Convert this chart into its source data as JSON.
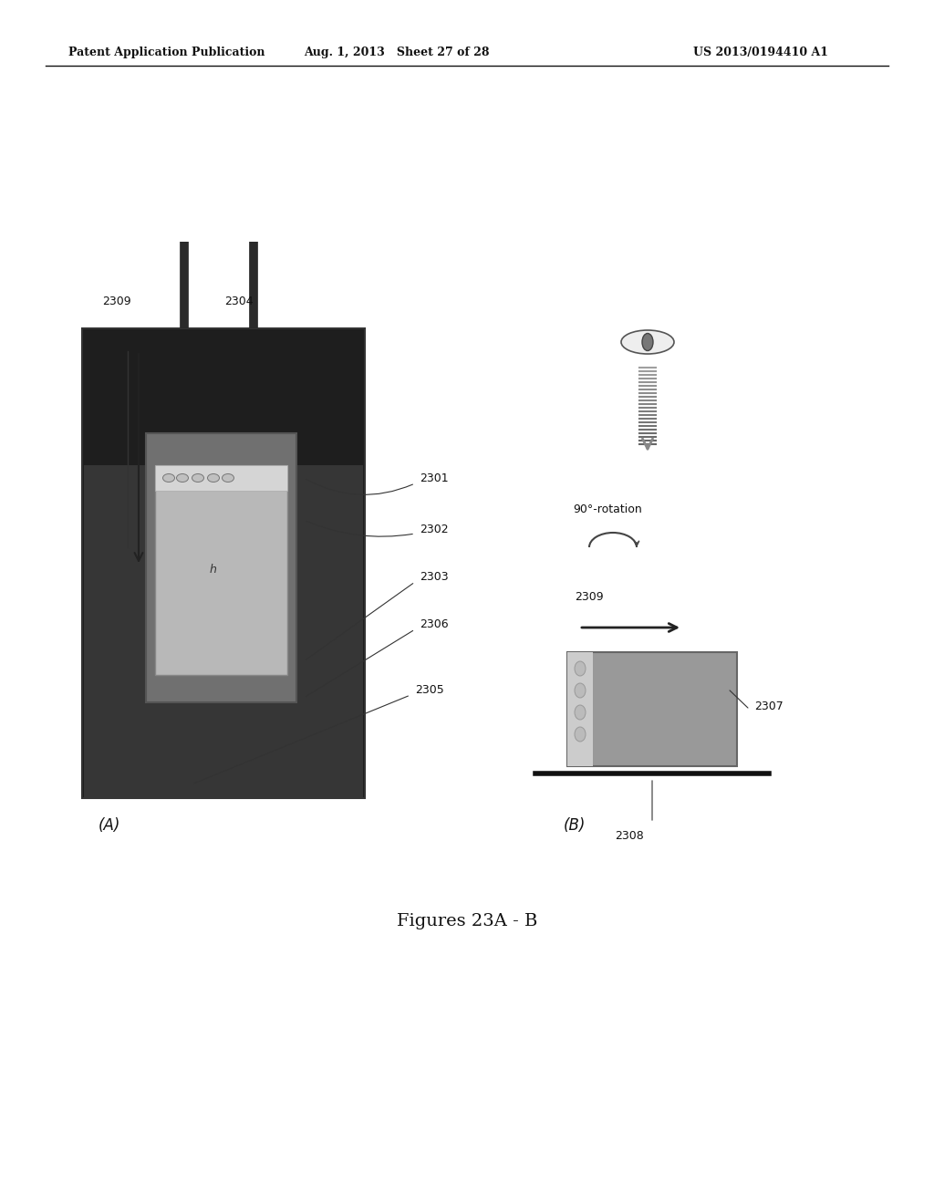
{
  "bg_color": "#ffffff",
  "header_left": "Patent Application Publication",
  "header_mid": "Aug. 1, 2013   Sheet 27 of 28",
  "header_right": "US 2013/0194410 A1",
  "caption": "Figures 23A - B",
  "label_A": "(A)",
  "label_B": "(B)",
  "rotation_label": "90°-rotation",
  "label_2309": "2309",
  "label_2304": "2304",
  "label_2301": "2301",
  "label_2302": "2302",
  "label_2303": "2303",
  "label_2306": "2306",
  "label_2305": "2305",
  "label_2307": "2307",
  "label_2308": "2308",
  "label_2309b": "2309"
}
